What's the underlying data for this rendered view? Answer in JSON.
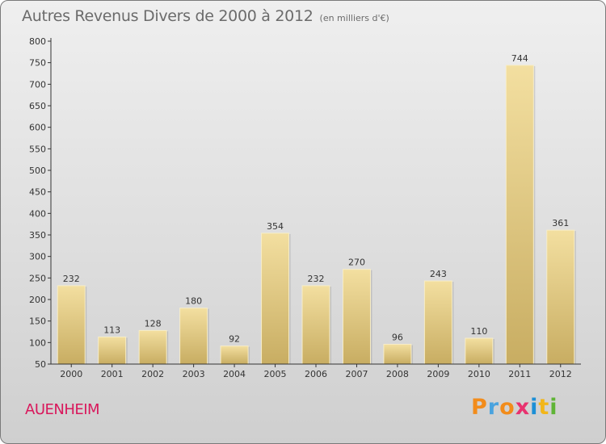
{
  "title": "Autres Revenus Divers de 2000 à 2012",
  "subtitle": "(en milliers d'€)",
  "commune": "AUENHEIM",
  "logo": {
    "letters": [
      "P",
      "r",
      "o",
      "x",
      "i",
      "t",
      "i"
    ],
    "colors": [
      "#f28c1b",
      "#4aa3df",
      "#f28c1b",
      "#e8326f",
      "#1c8fd6",
      "#f2b619",
      "#5fb436"
    ]
  },
  "colors": {
    "bar_light": "#f3dfa0",
    "bar_dark": "#c8ad62",
    "title": "#6b6b6b",
    "commune": "#d9185c"
  },
  "chart_data": {
    "type": "bar",
    "categories": [
      "2000",
      "2001",
      "2002",
      "2003",
      "2004",
      "2005",
      "2006",
      "2007",
      "2008",
      "2009",
      "2010",
      "2011",
      "2012"
    ],
    "values": [
      232,
      113,
      128,
      180,
      92,
      354,
      232,
      270,
      96,
      243,
      110,
      744,
      361
    ],
    "ylim": [
      50,
      800
    ],
    "yticks": [
      50,
      100,
      150,
      200,
      250,
      300,
      350,
      400,
      450,
      500,
      550,
      600,
      650,
      700,
      750,
      800
    ],
    "grid": false,
    "xlabel": "",
    "ylabel": ""
  }
}
